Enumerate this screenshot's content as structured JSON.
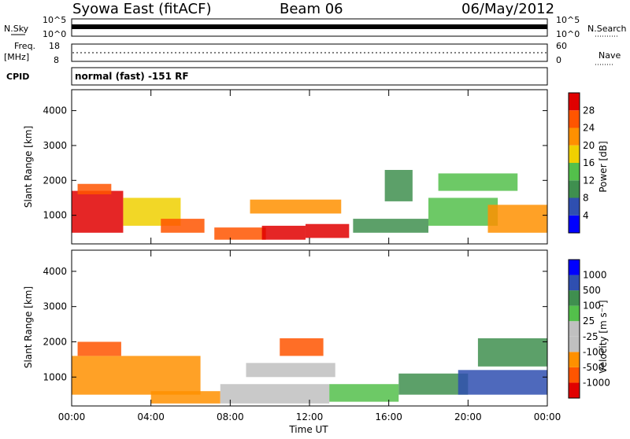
{
  "header": {
    "station": "Syowa East (fitACF)",
    "beam": "Beam 06",
    "date": "06/May/2012"
  },
  "strip_labels": {
    "nsky": "N.Sky",
    "nsearch": "N.Search",
    "freq": "Freq.",
    "freq_unit": "[MHz]",
    "nave": "Nave",
    "cpid": "CPID",
    "cpid_text": "normal (fast) -151 RF",
    "noise_ticks": [
      "10^5",
      "10^0"
    ],
    "freq_ticks": [
      "18",
      "8"
    ],
    "nave_ticks": [
      "60",
      "0"
    ]
  },
  "colors": {
    "power": [
      "#0000ff",
      "#2f4fb0",
      "#3f8f4f",
      "#53c04b",
      "#f0d000",
      "#ff9000",
      "#ff5500",
      "#e00000"
    ],
    "velocity": [
      "#e00000",
      "#ff5500",
      "#ff9000",
      "#c0c0c0",
      "#c0c0c0",
      "#53c04b",
      "#3f8f4f",
      "#2f4fb0",
      "#0000ff"
    ]
  },
  "chart_data": [
    {
      "type": "heatmap",
      "name": "power",
      "ylabel": "Slant Range [km]",
      "x_ticks": [
        "00:00",
        "04:00",
        "08:00",
        "12:00",
        "16:00",
        "20:00",
        "00:00"
      ],
      "y_ticks": [
        1000,
        2000,
        3000,
        4000
      ],
      "ylim": [
        180,
        4600
      ],
      "colorbar": {
        "label": "Power [dB]",
        "ticks": [
          4,
          8,
          12,
          16,
          20,
          24,
          28
        ]
      },
      "regions": [
        {
          "t": [
            0.0,
            2.6
          ],
          "r": [
            500,
            1700
          ],
          "level": 7
        },
        {
          "t": [
            0.3,
            2.0
          ],
          "r": [
            1600,
            1900
          ],
          "level": 6
        },
        {
          "t": [
            2.6,
            5.5
          ],
          "r": [
            700,
            1500
          ],
          "level": 4
        },
        {
          "t": [
            4.5,
            6.7
          ],
          "r": [
            500,
            900
          ],
          "level": 6
        },
        {
          "t": [
            7.2,
            9.8
          ],
          "r": [
            300,
            650
          ],
          "level": 6
        },
        {
          "t": [
            9.6,
            11.8
          ],
          "r": [
            300,
            700
          ],
          "level": 7
        },
        {
          "t": [
            11.8,
            14.0
          ],
          "r": [
            350,
            750
          ],
          "level": 7
        },
        {
          "t": [
            9.0,
            13.6
          ],
          "r": [
            1050,
            1450
          ],
          "level": 5
        },
        {
          "t": [
            14.2,
            18.0
          ],
          "r": [
            500,
            900
          ],
          "level": 2
        },
        {
          "t": [
            18.0,
            21.5
          ],
          "r": [
            700,
            1500
          ],
          "level": 3
        },
        {
          "t": [
            21.0,
            24.0
          ],
          "r": [
            500,
            1300
          ],
          "level": 5
        },
        {
          "t": [
            18.5,
            22.5
          ],
          "r": [
            1700,
            2200
          ],
          "level": 3
        },
        {
          "t": [
            15.8,
            17.2
          ],
          "r": [
            1400,
            2300
          ],
          "level": 2
        }
      ]
    },
    {
      "type": "heatmap",
      "name": "velocity",
      "xlabel": "Time UT",
      "ylabel": "Slant Range [km]",
      "x_ticks": [
        "00:00",
        "04:00",
        "08:00",
        "12:00",
        "16:00",
        "20:00",
        "00:00"
      ],
      "y_ticks": [
        1000,
        2000,
        3000,
        4000
      ],
      "ylim": [
        180,
        4600
      ],
      "colorbar": {
        "label": "Velocity [m s⁻¹]",
        "ticks": [
          -1000,
          -500,
          -100,
          -25,
          25,
          100,
          500,
          1000
        ]
      },
      "regions": [
        {
          "t": [
            0.0,
            6.5
          ],
          "r": [
            500,
            1600
          ],
          "level": 2
        },
        {
          "t": [
            0.3,
            2.5
          ],
          "r": [
            1600,
            2000
          ],
          "level": 1
        },
        {
          "t": [
            4.0,
            7.5
          ],
          "r": [
            250,
            600
          ],
          "level": 2
        },
        {
          "t": [
            7.5,
            13.0
          ],
          "r": [
            250,
            800
          ],
          "level": 3
        },
        {
          "t": [
            8.8,
            13.3
          ],
          "r": [
            1000,
            1400
          ],
          "level": 3
        },
        {
          "t": [
            13.0,
            16.5
          ],
          "r": [
            300,
            800
          ],
          "level": 5
        },
        {
          "t": [
            16.5,
            20.0
          ],
          "r": [
            500,
            1100
          ],
          "level": 6
        },
        {
          "t": [
            19.5,
            24.0
          ],
          "r": [
            500,
            1200
          ],
          "level": 7
        },
        {
          "t": [
            20.5,
            24.0
          ],
          "r": [
            1300,
            2100
          ],
          "level": 6
        },
        {
          "t": [
            10.5,
            12.7
          ],
          "r": [
            1600,
            2100
          ],
          "level": 1
        }
      ]
    }
  ]
}
